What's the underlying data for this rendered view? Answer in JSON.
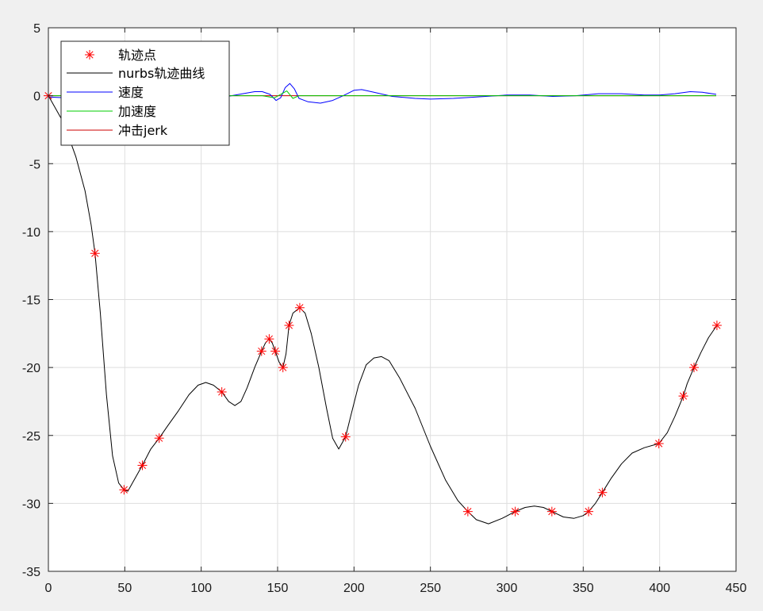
{
  "chart_data": {
    "type": "line",
    "xlim": [
      0,
      450
    ],
    "ylim": [
      -35,
      5
    ],
    "x_ticks": [
      0,
      50,
      100,
      150,
      200,
      250,
      300,
      350,
      400,
      450
    ],
    "y_ticks": [
      5,
      0,
      -5,
      -10,
      -15,
      -20,
      -25,
      -30,
      -35
    ],
    "grid": true,
    "legend_placement": "top-left",
    "legend": [
      "轨迹点",
      "nurbs轨迹曲线",
      "速度",
      "加速度",
      "冲击jerk"
    ],
    "colors": {
      "points": "#ff0000",
      "nurbs": "#000000",
      "velocity": "#0000ff",
      "acceleration": "#00cc00",
      "jerk": "#cc0000"
    },
    "series": [
      {
        "name": "轨迹点",
        "marker": "asterisk",
        "points": [
          [
            0,
            0
          ],
          [
            30.5,
            -11.6
          ],
          [
            49.5,
            -29
          ],
          [
            61.5,
            -27.2
          ],
          [
            72.5,
            -25.2
          ],
          [
            113.5,
            -21.8
          ],
          [
            139.5,
            -18.8
          ],
          [
            144.5,
            -17.9
          ],
          [
            148.5,
            -18.8
          ],
          [
            153.5,
            -20
          ],
          [
            157.5,
            -16.9
          ],
          [
            164.5,
            -15.6
          ],
          [
            194.5,
            -25.1
          ],
          [
            274.5,
            -30.6
          ],
          [
            305.5,
            -30.6
          ],
          [
            329.5,
            -30.6
          ],
          [
            353.5,
            -30.6
          ],
          [
            362.5,
            -29.2
          ],
          [
            399.5,
            -25.6
          ],
          [
            415.5,
            -22.1
          ],
          [
            422.5,
            -20
          ],
          [
            437.5,
            -16.9
          ]
        ]
      },
      {
        "name": "nurbs轨迹曲线",
        "points": [
          [
            0,
            0
          ],
          [
            10,
            -2
          ],
          [
            18,
            -4.5
          ],
          [
            24,
            -7
          ],
          [
            28,
            -9.5
          ],
          [
            30.5,
            -11.6
          ],
          [
            34,
            -16
          ],
          [
            38,
            -22
          ],
          [
            42,
            -26.5
          ],
          [
            46,
            -28.5
          ],
          [
            49.5,
            -29
          ],
          [
            52,
            -29.1
          ],
          [
            56,
            -28.3
          ],
          [
            61.5,
            -27.2
          ],
          [
            67,
            -26
          ],
          [
            72.5,
            -25.2
          ],
          [
            78,
            -24.3
          ],
          [
            85,
            -23.2
          ],
          [
            92,
            -22
          ],
          [
            98,
            -21.3
          ],
          [
            103,
            -21.1
          ],
          [
            108,
            -21.3
          ],
          [
            113.5,
            -21.8
          ],
          [
            118,
            -22.5
          ],
          [
            122,
            -22.8
          ],
          [
            126,
            -22.5
          ],
          [
            130,
            -21.5
          ],
          [
            135,
            -20
          ],
          [
            139.5,
            -18.8
          ],
          [
            142,
            -18.2
          ],
          [
            144.5,
            -17.9
          ],
          [
            146.5,
            -18.2
          ],
          [
            148.5,
            -18.8
          ],
          [
            151,
            -19.6
          ],
          [
            153.5,
            -20
          ],
          [
            155.5,
            -19
          ],
          [
            157.5,
            -16.9
          ],
          [
            160,
            -16
          ],
          [
            164.5,
            -15.6
          ],
          [
            168,
            -16
          ],
          [
            172,
            -17.5
          ],
          [
            177,
            -20
          ],
          [
            182,
            -23
          ],
          [
            186,
            -25.2
          ],
          [
            190,
            -26
          ],
          [
            194.5,
            -25.1
          ],
          [
            198,
            -23.5
          ],
          [
            203,
            -21.3
          ],
          [
            208,
            -19.8
          ],
          [
            213,
            -19.3
          ],
          [
            218,
            -19.2
          ],
          [
            223,
            -19.5
          ],
          [
            230,
            -20.8
          ],
          [
            240,
            -23
          ],
          [
            250,
            -25.8
          ],
          [
            260,
            -28.3
          ],
          [
            268,
            -29.8
          ],
          [
            274.5,
            -30.6
          ],
          [
            280,
            -31.2
          ],
          [
            288,
            -31.5
          ],
          [
            297,
            -31.1
          ],
          [
            305.5,
            -30.6
          ],
          [
            312,
            -30.3
          ],
          [
            318,
            -30.2
          ],
          [
            324,
            -30.3
          ],
          [
            329.5,
            -30.6
          ],
          [
            337,
            -31
          ],
          [
            344,
            -31.1
          ],
          [
            350,
            -30.9
          ],
          [
            353.5,
            -30.6
          ],
          [
            358,
            -30
          ],
          [
            362.5,
            -29.2
          ],
          [
            368,
            -28.2
          ],
          [
            375,
            -27.1
          ],
          [
            382,
            -26.3
          ],
          [
            390,
            -25.9
          ],
          [
            399.5,
            -25.6
          ],
          [
            405,
            -24.8
          ],
          [
            410,
            -23.6
          ],
          [
            415.5,
            -22.1
          ],
          [
            418,
            -21.2
          ],
          [
            422.5,
            -20
          ],
          [
            427,
            -18.9
          ],
          [
            432,
            -17.8
          ],
          [
            437.5,
            -16.9
          ]
        ]
      },
      {
        "name": "速度",
        "points": [
          [
            0,
            -0.1
          ],
          [
            20,
            -0.2
          ],
          [
            50,
            -0.25
          ],
          [
            80,
            -0.15
          ],
          [
            100,
            -0.05
          ],
          [
            115,
            -0.1
          ],
          [
            125,
            0.1
          ],
          [
            135,
            0.3
          ],
          [
            140,
            0.3
          ],
          [
            145,
            0.1
          ],
          [
            149,
            -0.35
          ],
          [
            152,
            -0.15
          ],
          [
            155,
            0.6
          ],
          [
            158,
            0.9
          ],
          [
            161,
            0.5
          ],
          [
            164,
            -0.2
          ],
          [
            170,
            -0.45
          ],
          [
            178,
            -0.55
          ],
          [
            186,
            -0.35
          ],
          [
            193,
            0
          ],
          [
            200,
            0.4
          ],
          [
            205,
            0.45
          ],
          [
            213,
            0.25
          ],
          [
            225,
            -0.05
          ],
          [
            240,
            -0.2
          ],
          [
            250,
            -0.25
          ],
          [
            265,
            -0.2
          ],
          [
            280,
            -0.1
          ],
          [
            300,
            0.05
          ],
          [
            315,
            0.05
          ],
          [
            330,
            -0.05
          ],
          [
            345,
            0
          ],
          [
            360,
            0.15
          ],
          [
            375,
            0.15
          ],
          [
            390,
            0.05
          ],
          [
            400,
            0.05
          ],
          [
            410,
            0.15
          ],
          [
            420,
            0.3
          ],
          [
            428,
            0.25
          ],
          [
            437,
            0.1
          ]
        ]
      },
      {
        "name": "加速度",
        "points": [
          [
            0,
            0
          ],
          [
            100,
            0
          ],
          [
            140,
            0
          ],
          [
            148,
            -0.15
          ],
          [
            152,
            0.1
          ],
          [
            156,
            0.35
          ],
          [
            160,
            -0.2
          ],
          [
            164,
            0
          ],
          [
            200,
            0
          ],
          [
            437,
            0
          ]
        ]
      },
      {
        "name": "冲击jerk",
        "points": [
          [
            0,
            0
          ],
          [
            437,
            0
          ]
        ]
      }
    ]
  }
}
